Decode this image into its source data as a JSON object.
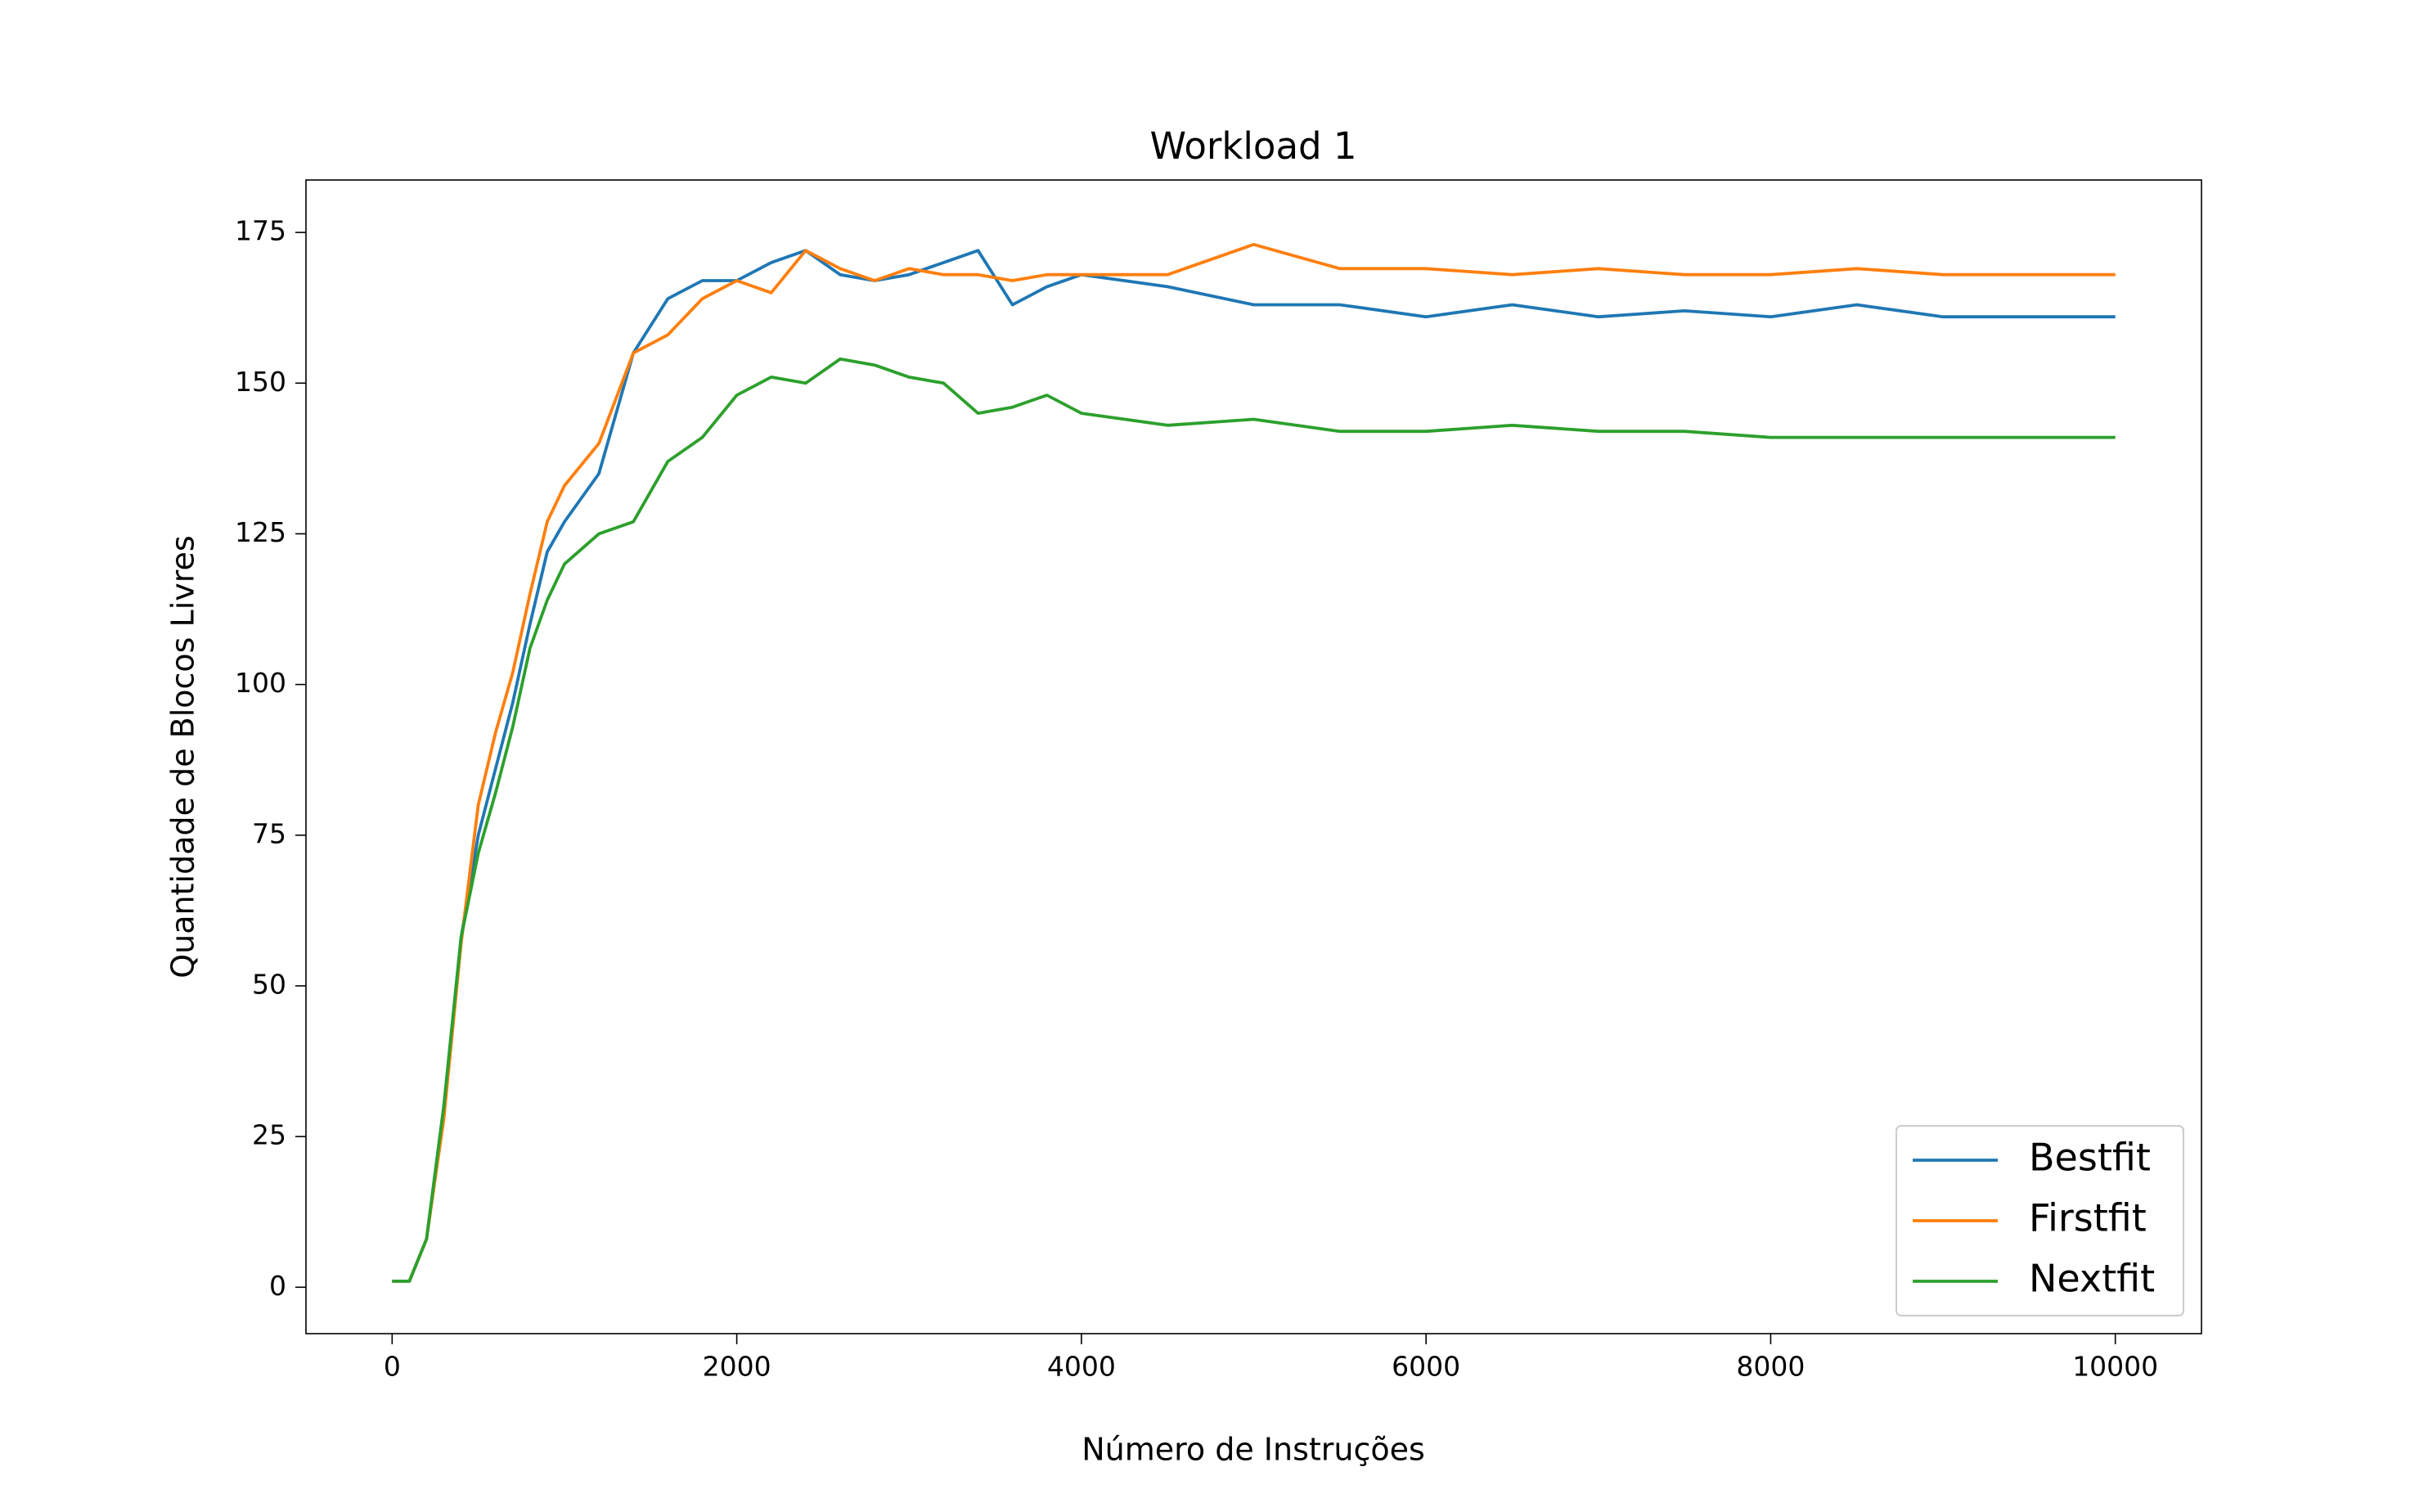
{
  "chart_data": {
    "type": "line",
    "title": "Workload 1",
    "xlabel": "Número de Instruções",
    "ylabel": "Quantidade de Blocos Livres",
    "x": [
      0,
      100,
      200,
      300,
      400,
      500,
      600,
      700,
      800,
      900,
      1000,
      1200,
      1400,
      1600,
      1800,
      2000,
      2200,
      2400,
      2600,
      2800,
      3000,
      3200,
      3400,
      3600,
      3800,
      4000,
      4500,
      5000,
      5500,
      6000,
      6500,
      7000,
      7500,
      8000,
      8500,
      9000,
      9500,
      10000
    ],
    "series": [
      {
        "name": "Bestfit",
        "color": "#1f77b4",
        "values": [
          1,
          1,
          8,
          30,
          58,
          75,
          86,
          97,
          110,
          122,
          127,
          135,
          155,
          164,
          167,
          167,
          170,
          172,
          168,
          167,
          168,
          170,
          172,
          163,
          166,
          168,
          166,
          163,
          163,
          161,
          163,
          161,
          162,
          161,
          163,
          161,
          161,
          161
        ]
      },
      {
        "name": "Firstfit",
        "color": "#ff7f0e",
        "values": [
          1,
          1,
          8,
          28,
          57,
          80,
          92,
          102,
          115,
          127,
          133,
          140,
          155,
          158,
          164,
          167,
          165,
          172,
          169,
          167,
          169,
          168,
          168,
          167,
          168,
          168,
          168,
          173,
          169,
          169,
          168,
          169,
          168,
          168,
          169,
          168,
          168,
          168
        ]
      },
      {
        "name": "Nextfit",
        "color": "#2ca02c",
        "values": [
          1,
          1,
          8,
          30,
          58,
          72,
          82,
          93,
          106,
          114,
          120,
          125,
          127,
          137,
          141,
          148,
          151,
          150,
          154,
          153,
          151,
          150,
          145,
          146,
          148,
          145,
          143,
          144,
          142,
          142,
          143,
          142,
          142,
          141,
          141,
          141,
          141,
          141
        ]
      }
    ],
    "xlim": [
      -500,
      10500
    ],
    "xticks": [
      0,
      2000,
      4000,
      6000,
      8000,
      10000
    ],
    "ylim": [
      -7.7,
      183.7
    ],
    "yticks": [
      0,
      25,
      50,
      75,
      100,
      125,
      150,
      175
    ],
    "legend": "lower right",
    "grid": false
  }
}
